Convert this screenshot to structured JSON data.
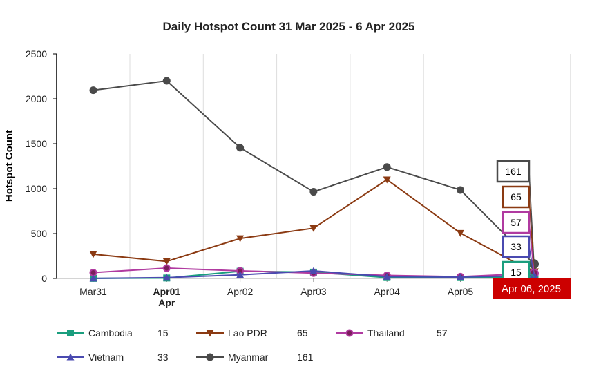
{
  "chart_data": {
    "type": "line",
    "title": "Daily Hotspot Count 31 Mar 2025 - 6 Apr 2025",
    "xlabel": "",
    "ylabel": "Hotspot Count",
    "ylim": [
      0,
      2500
    ],
    "yticks": [
      0,
      500,
      1000,
      1500,
      2000,
      2500
    ],
    "categories": [
      "Mar31",
      "Apr01",
      "Apr02",
      "Apr03",
      "Apr04",
      "Apr05",
      "Apr06"
    ],
    "month_label": "Apr",
    "bold_category": "Apr01",
    "highlight_label": "Apr 06, 2025",
    "series": [
      {
        "name": "Cambodia",
        "color": "#1a9e7e",
        "marker": "square",
        "values": [
          1,
          5,
          80,
          70,
          10,
          10,
          15
        ],
        "latest": "15"
      },
      {
        "name": "Lao PDR",
        "color": "#8b3a12",
        "marker": "triangle-down",
        "values": [
          270,
          190,
          445,
          560,
          1100,
          505,
          65
        ],
        "latest": "65"
      },
      {
        "name": "Thailand",
        "color": "#b03aa0",
        "marker": "circle",
        "values": [
          65,
          115,
          85,
          60,
          35,
          20,
          57
        ],
        "latest": "57"
      },
      {
        "name": "Vietnam",
        "color": "#4a4ab0",
        "marker": "triangle-up",
        "values": [
          1,
          10,
          40,
          85,
          20,
          15,
          33
        ],
        "latest": "33"
      },
      {
        "name": "Myanmar",
        "color": "#4a4a4a",
        "marker": "circle",
        "values": [
          2095,
          2200,
          1455,
          965,
          1240,
          985,
          161
        ],
        "latest": "161"
      }
    ],
    "tooltip_order": [
      "Myanmar",
      "Lao PDR",
      "Thailand",
      "Vietnam",
      "Cambodia"
    ],
    "legend_placement": "bottom",
    "grid": "vertical"
  }
}
